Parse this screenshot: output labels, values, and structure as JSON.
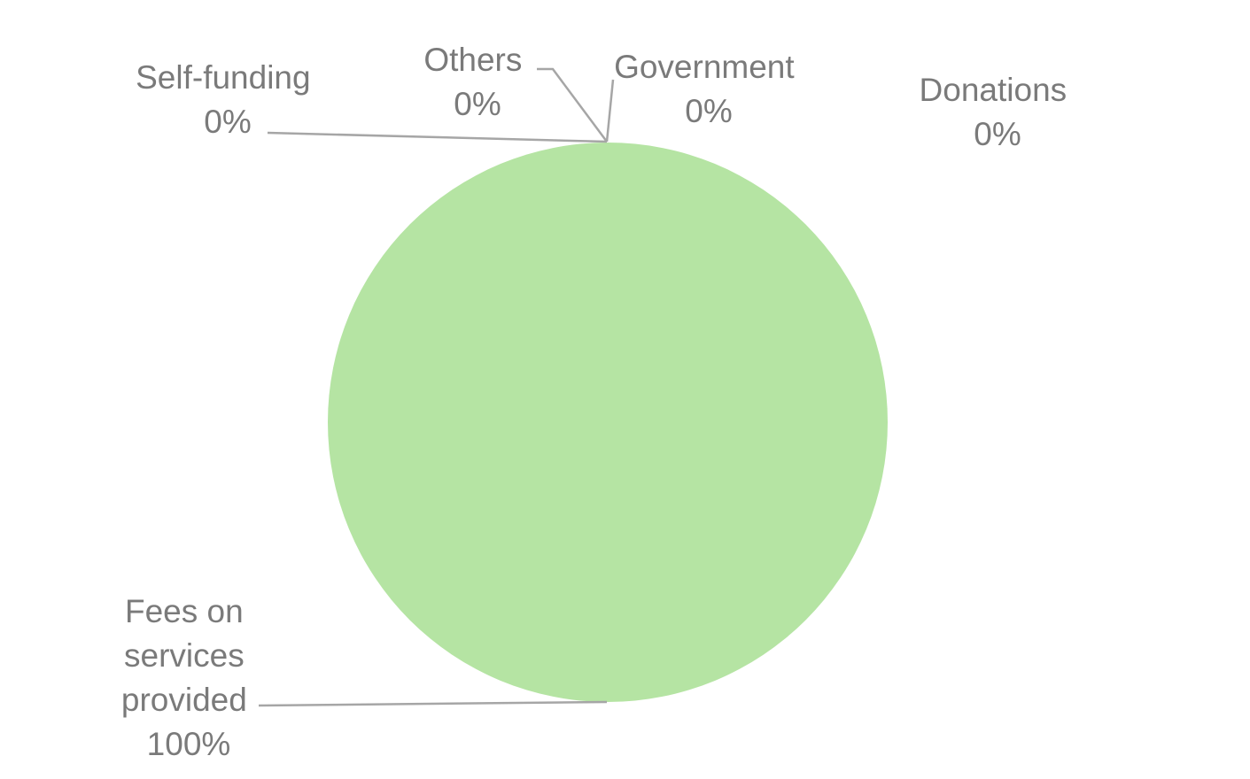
{
  "chart_data": {
    "type": "pie",
    "title": "",
    "slices": [
      {
        "label": "Fees on services provided",
        "display_label": [
          "Fees on",
          "services",
          "provided"
        ],
        "value": 100,
        "percent_label": "100%",
        "color": "#b5e4a3"
      },
      {
        "label": "Self-funding",
        "display_label": [
          "Self-funding"
        ],
        "value": 0,
        "percent_label": "0%",
        "color": "#b5e4a3"
      },
      {
        "label": "Others",
        "display_label": [
          "Others"
        ],
        "value": 0,
        "percent_label": "0%",
        "color": "#b5e4a3"
      },
      {
        "label": "Government",
        "display_label": [
          "Government"
        ],
        "value": 0,
        "percent_label": "0%",
        "color": "#b5e4a3"
      },
      {
        "label": "Donations",
        "display_label": [
          "Donations"
        ],
        "value": 0,
        "percent_label": "0%",
        "color": "#b5e4a3"
      }
    ],
    "legend": false,
    "label_color": "#7a7a7a",
    "leader_line_color": "#a6a6a6"
  }
}
